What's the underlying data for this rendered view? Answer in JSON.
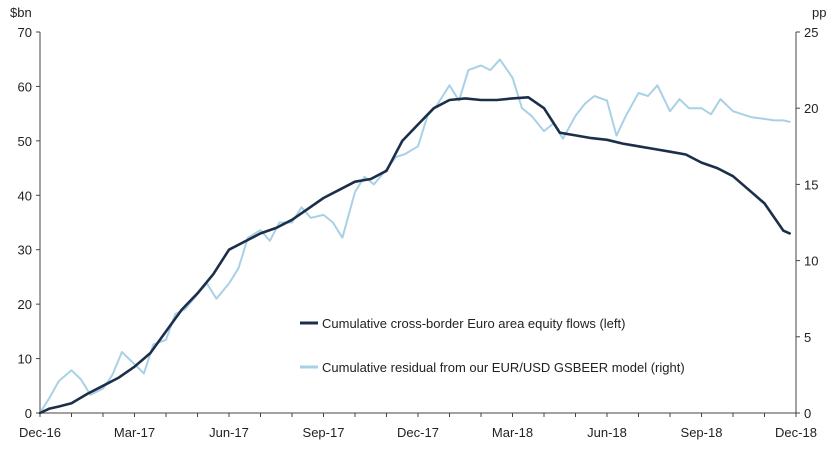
{
  "chart_data": {
    "type": "line",
    "title": "",
    "xlabel": "",
    "y_left_unit": "$bn",
    "y_right_unit": "pp",
    "y_left_range": [
      0,
      70
    ],
    "y_right_range": [
      0,
      25
    ],
    "y_left_ticks": [
      "0",
      "10",
      "20",
      "30",
      "40",
      "50",
      "60",
      "70"
    ],
    "y_right_ticks": [
      "0",
      "5",
      "10",
      "15",
      "20",
      "25"
    ],
    "x_tick_labels": [
      "Dec-16",
      "Mar-17",
      "Jun-17",
      "Sep-17",
      "Dec-17",
      "Mar-18",
      "Jun-18",
      "Sep-18",
      "Dec-18"
    ],
    "x_month_range": [
      0,
      24
    ],
    "grid": false,
    "legend_position": "lower-center",
    "series": [
      {
        "name": "Cumulative cross-border Euro area equity flows (left)",
        "axis": "left",
        "color": "#1c2f4a",
        "x": [
          0,
          0.3,
          0.6,
          1.0,
          1.5,
          2.0,
          2.5,
          3.0,
          3.5,
          4.0,
          4.5,
          5.0,
          5.5,
          6.0,
          6.5,
          7.0,
          7.5,
          8.0,
          8.5,
          9.0,
          9.5,
          10.0,
          10.5,
          11.0,
          11.5,
          12.0,
          12.5,
          13.0,
          13.5,
          14.0,
          14.5,
          15.0,
          15.5,
          16.0,
          16.5,
          17.0,
          17.5,
          18.0,
          18.5,
          19.0,
          19.5,
          20.0,
          20.5,
          21.0,
          21.5,
          22.0,
          22.5,
          23.0,
          23.3,
          23.6,
          23.8
        ],
        "values": [
          0,
          0.8,
          1.2,
          1.8,
          3.5,
          5.0,
          6.5,
          8.5,
          11.0,
          15.0,
          19.0,
          22.0,
          25.5,
          30.0,
          31.5,
          33.0,
          34.0,
          35.5,
          37.5,
          39.5,
          41.0,
          42.5,
          43.0,
          44.5,
          50.0,
          53.0,
          56.0,
          57.5,
          57.8,
          57.5,
          57.5,
          57.8,
          58.0,
          56.0,
          51.5,
          51.0,
          50.5,
          50.2,
          49.5,
          49.0,
          48.5,
          48.0,
          47.5,
          46.0,
          45.0,
          43.5,
          41.0,
          38.5,
          36.0,
          33.5,
          33.0
        ]
      },
      {
        "name": "Cumulative residual from our EUR/USD GSBEER model (right)",
        "axis": "right",
        "color": "#a9d1e6",
        "x": [
          0,
          0.3,
          0.6,
          1.0,
          1.3,
          1.6,
          2.0,
          2.3,
          2.6,
          3.0,
          3.3,
          3.6,
          4.0,
          4.3,
          4.6,
          5.0,
          5.3,
          5.6,
          6.0,
          6.3,
          6.6,
          7.0,
          7.3,
          7.6,
          8.0,
          8.3,
          8.6,
          9.0,
          9.3,
          9.6,
          10.0,
          10.3,
          10.6,
          11.0,
          11.3,
          11.6,
          12.0,
          12.3,
          12.6,
          13.0,
          13.3,
          13.6,
          14.0,
          14.3,
          14.6,
          15.0,
          15.3,
          15.6,
          16.0,
          16.3,
          16.6,
          17.0,
          17.3,
          17.6,
          18.0,
          18.3,
          18.6,
          19.0,
          19.3,
          19.6,
          20.0,
          20.3,
          20.6,
          21.0,
          21.3,
          21.6,
          22.0,
          22.3,
          22.6,
          23.0,
          23.3,
          23.6,
          23.8
        ],
        "values": [
          0,
          1.0,
          2.1,
          2.8,
          2.2,
          1.2,
          1.6,
          2.5,
          4.0,
          3.2,
          2.6,
          4.5,
          4.8,
          6.5,
          6.8,
          7.8,
          8.5,
          7.5,
          8.5,
          9.5,
          11.5,
          12.0,
          11.3,
          12.5,
          12.5,
          13.5,
          12.8,
          13.0,
          12.5,
          11.5,
          14.5,
          15.5,
          15.0,
          16.0,
          16.8,
          17.0,
          17.5,
          19.5,
          20.2,
          21.5,
          20.5,
          22.5,
          22.8,
          22.5,
          23.2,
          22.0,
          20.0,
          19.5,
          18.5,
          19.0,
          18.0,
          19.5,
          20.3,
          20.8,
          20.5,
          18.2,
          19.5,
          21.0,
          20.8,
          21.5,
          19.8,
          20.6,
          20.0,
          20.0,
          19.6,
          20.6,
          19.8,
          19.6,
          19.4,
          19.3,
          19.2,
          19.2,
          19.1
        ]
      }
    ]
  }
}
